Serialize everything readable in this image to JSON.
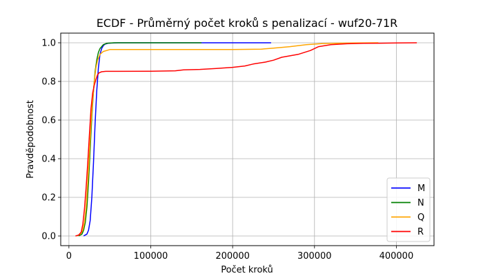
{
  "chart_data": {
    "type": "line",
    "title": "ECDF - Průměrný počet kroků s penalizací - wuf20-71R",
    "xlabel": "Počet kroků",
    "ylabel": "Pravděpodobnost",
    "xlim": [
      -10000,
      446000
    ],
    "ylim": [
      -0.05,
      1.05
    ],
    "xticks": [
      0,
      100000,
      200000,
      300000,
      400000
    ],
    "yticks": [
      0.0,
      0.2,
      0.4,
      0.6,
      0.8,
      1.0
    ],
    "xtick_labels": [
      "0",
      "100000",
      "200000",
      "300000",
      "400000"
    ],
    "ytick_labels": [
      "0.0",
      "0.2",
      "0.4",
      "0.6",
      "0.8",
      "1.0"
    ],
    "grid": true,
    "legend_position": "lower-right",
    "series": [
      {
        "name": "M",
        "color": "#0000ff",
        "x": [
          18000,
          22000,
          24000,
          26000,
          28000,
          30000,
          32000,
          34000,
          36000,
          38000,
          40000,
          42000,
          44000,
          48000,
          60000,
          100000,
          160000,
          247000
        ],
        "y": [
          0.0,
          0.01,
          0.03,
          0.08,
          0.2,
          0.38,
          0.58,
          0.75,
          0.87,
          0.94,
          0.97,
          0.985,
          0.993,
          0.998,
          1.0,
          1.0,
          1.0,
          1.0
        ]
      },
      {
        "name": "N",
        "color": "#008000",
        "x": [
          12000,
          16000,
          18000,
          20000,
          22000,
          24000,
          26000,
          28000,
          30000,
          32000,
          34000,
          36000,
          38000,
          40000,
          42000,
          46000,
          55000,
          100000,
          162000
        ],
        "y": [
          0.0,
          0.01,
          0.03,
          0.07,
          0.15,
          0.28,
          0.45,
          0.62,
          0.75,
          0.85,
          0.91,
          0.95,
          0.97,
          0.98,
          0.99,
          0.997,
          1.0,
          1.0,
          1.0
        ]
      },
      {
        "name": "Q",
        "color": "#ffa500",
        "x": [
          10000,
          14000,
          17000,
          19000,
          21000,
          23000,
          25000,
          27000,
          29000,
          31000,
          33000,
          35000,
          38000,
          42000,
          50000,
          100000,
          200000,
          235000,
          250000,
          270000,
          290000,
          310000,
          330000,
          350000,
          378000
        ],
        "y": [
          0.0,
          0.01,
          0.03,
          0.07,
          0.15,
          0.28,
          0.42,
          0.58,
          0.7,
          0.8,
          0.87,
          0.91,
          0.94,
          0.955,
          0.965,
          0.965,
          0.965,
          0.967,
          0.972,
          0.98,
          0.99,
          0.996,
          0.998,
          0.999,
          1.0
        ]
      },
      {
        "name": "R",
        "color": "#ff0000",
        "x": [
          8000,
          12000,
          15000,
          17000,
          19000,
          21000,
          23000,
          25000,
          27000,
          29000,
          31000,
          33000,
          35000,
          37000,
          40000,
          45000,
          60000,
          100000,
          130000,
          140000,
          160000,
          180000,
          200000,
          215000,
          225000,
          240000,
          250000,
          260000,
          280000,
          295000,
          305000,
          320000,
          340000,
          360000,
          380000,
          400000,
          425000
        ],
        "y": [
          0.0,
          0.005,
          0.02,
          0.06,
          0.14,
          0.25,
          0.38,
          0.52,
          0.66,
          0.74,
          0.78,
          0.81,
          0.835,
          0.845,
          0.85,
          0.852,
          0.852,
          0.853,
          0.855,
          0.86,
          0.862,
          0.867,
          0.873,
          0.88,
          0.89,
          0.9,
          0.91,
          0.925,
          0.94,
          0.96,
          0.98,
          0.99,
          0.995,
          0.997,
          0.998,
          0.999,
          1.0
        ]
      }
    ]
  }
}
